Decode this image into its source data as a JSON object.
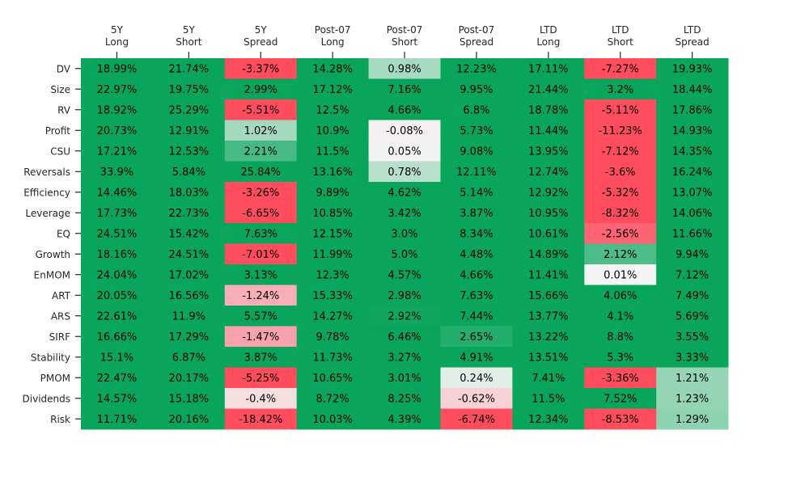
{
  "chart_data": {
    "type": "heatmap",
    "columns": [
      [
        "5Y",
        "Long"
      ],
      [
        "5Y",
        "Short"
      ],
      [
        "5Y",
        "Spread"
      ],
      [
        "Post-07",
        "Long"
      ],
      [
        "Post-07",
        "Short"
      ],
      [
        "Post-07",
        "Spread"
      ],
      [
        "LTD",
        "Long"
      ],
      [
        "LTD",
        "Short"
      ],
      [
        "LTD",
        "Spread"
      ]
    ],
    "rows": [
      "DV",
      "Size",
      "RV",
      "Profit",
      "CSU",
      "Reversals",
      "Efficiency",
      "Leverage",
      "EQ",
      "Growth",
      "EnMOM",
      "ART",
      "ARS",
      "SIRF",
      "Stability",
      "PMOM",
      "Dividends",
      "Risk"
    ],
    "cell_labels": [
      [
        "18.99%",
        "21.74%",
        "-3.37%",
        "14.28%",
        "0.98%",
        "12.23%",
        "17.11%",
        "-7.27%",
        "19.93%"
      ],
      [
        "22.97%",
        "19.75%",
        "2.99%",
        "17.12%",
        "7.16%",
        "9.95%",
        "21.44%",
        "3.2%",
        "18.44%"
      ],
      [
        "18.92%",
        "25.29%",
        "-5.51%",
        "12.5%",
        "4.66%",
        "6.8%",
        "18.78%",
        "-5.11%",
        "17.86%"
      ],
      [
        "20.73%",
        "12.91%",
        "1.02%",
        "10.9%",
        "-0.08%",
        "5.73%",
        "11.44%",
        "-11.23%",
        "14.93%"
      ],
      [
        "17.21%",
        "12.53%",
        "2.21%",
        "11.5%",
        "0.05%",
        "9.08%",
        "13.95%",
        "-7.12%",
        "14.35%"
      ],
      [
        "33.9%",
        "5.84%",
        "25.84%",
        "13.16%",
        "0.78%",
        "12.11%",
        "12.74%",
        "-3.6%",
        "16.24%"
      ],
      [
        "14.46%",
        "18.03%",
        "-3.26%",
        "9.89%",
        "4.62%",
        "5.14%",
        "12.92%",
        "-5.32%",
        "13.07%"
      ],
      [
        "17.73%",
        "22.73%",
        "-6.65%",
        "10.85%",
        "3.42%",
        "3.87%",
        "10.95%",
        "-8.32%",
        "14.06%"
      ],
      [
        "24.51%",
        "15.42%",
        "7.63%",
        "12.15%",
        "3.0%",
        "8.34%",
        "10.61%",
        "-2.56%",
        "11.66%"
      ],
      [
        "18.16%",
        "24.51%",
        "-7.01%",
        "11.99%",
        "5.0%",
        "4.48%",
        "14.89%",
        "2.12%",
        "9.94%"
      ],
      [
        "24.04%",
        "17.02%",
        "3.13%",
        "12.3%",
        "4.57%",
        "4.66%",
        "11.41%",
        "0.01%",
        "7.12%"
      ],
      [
        "20.05%",
        "16.56%",
        "-1.24%",
        "15.33%",
        "2.98%",
        "7.63%",
        "15.66%",
        "4.06%",
        "7.49%"
      ],
      [
        "22.61%",
        "11.9%",
        "5.57%",
        "14.27%",
        "2.92%",
        "7.44%",
        "13.77%",
        "4.1%",
        "5.69%"
      ],
      [
        "16.66%",
        "17.29%",
        "-1.47%",
        "9.78%",
        "6.46%",
        "2.65%",
        "13.22%",
        "8.8%",
        "3.55%"
      ],
      [
        "15.1%",
        "6.87%",
        "3.87%",
        "11.73%",
        "3.27%",
        "4.91%",
        "13.51%",
        "5.3%",
        "3.33%"
      ],
      [
        "22.47%",
        "20.17%",
        "-5.25%",
        "10.65%",
        "3.01%",
        "0.24%",
        "7.41%",
        "-3.36%",
        "1.21%"
      ],
      [
        "14.57%",
        "15.18%",
        "-0.4%",
        "8.72%",
        "8.25%",
        "-0.62%",
        "11.5%",
        "7.52%",
        "1.23%"
      ],
      [
        "11.71%",
        "20.16%",
        "-18.42%",
        "10.03%",
        "4.39%",
        "-6.74%",
        "12.34%",
        "-8.53%",
        "1.29%"
      ]
    ],
    "values": [
      [
        18.99,
        21.74,
        -3.37,
        14.28,
        0.98,
        12.23,
        17.11,
        -7.27,
        19.93
      ],
      [
        22.97,
        19.75,
        2.99,
        17.12,
        7.16,
        9.95,
        21.44,
        3.2,
        18.44
      ],
      [
        18.92,
        25.29,
        -5.51,
        12.5,
        4.66,
        6.8,
        18.78,
        -5.11,
        17.86
      ],
      [
        20.73,
        12.91,
        1.02,
        10.9,
        -0.08,
        5.73,
        11.44,
        -11.23,
        14.93
      ],
      [
        17.21,
        12.53,
        2.21,
        11.5,
        0.05,
        9.08,
        13.95,
        -7.12,
        14.35
      ],
      [
        33.9,
        5.84,
        25.84,
        13.16,
        0.78,
        12.11,
        12.74,
        -3.6,
        16.24
      ],
      [
        14.46,
        18.03,
        -3.26,
        9.89,
        4.62,
        5.14,
        12.92,
        -5.32,
        13.07
      ],
      [
        17.73,
        22.73,
        -6.65,
        10.85,
        3.42,
        3.87,
        10.95,
        -8.32,
        14.06
      ],
      [
        24.51,
        15.42,
        7.63,
        12.15,
        3.0,
        8.34,
        10.61,
        -2.56,
        11.66
      ],
      [
        18.16,
        24.51,
        -7.01,
        11.99,
        5.0,
        4.48,
        14.89,
        2.12,
        9.94
      ],
      [
        24.04,
        17.02,
        3.13,
        12.3,
        4.57,
        4.66,
        11.41,
        0.01,
        7.12
      ],
      [
        20.05,
        16.56,
        -1.24,
        15.33,
        2.98,
        7.63,
        15.66,
        4.06,
        7.49
      ],
      [
        22.61,
        11.9,
        5.57,
        14.27,
        2.92,
        7.44,
        13.77,
        4.1,
        5.69
      ],
      [
        16.66,
        17.29,
        -1.47,
        9.78,
        6.46,
        2.65,
        13.22,
        8.8,
        3.55
      ],
      [
        15.1,
        6.87,
        3.87,
        11.73,
        3.27,
        4.91,
        13.51,
        5.3,
        3.33
      ],
      [
        22.47,
        20.17,
        -5.25,
        10.65,
        3.01,
        0.24,
        7.41,
        -3.36,
        1.21
      ],
      [
        14.57,
        15.18,
        -0.4,
        8.72,
        8.25,
        -0.62,
        11.5,
        7.52,
        1.23
      ],
      [
        11.71,
        20.16,
        -18.42,
        10.03,
        4.39,
        -6.74,
        12.34,
        -8.53,
        1.29
      ]
    ],
    "color_scale": {
      "negative": "#ff4d5e",
      "neutral": "#f4f4f4",
      "positive": "#09a55a",
      "vmin": -3,
      "vmax": 3
    },
    "xaxis_position": "top",
    "grid": false,
    "legend": "none"
  }
}
